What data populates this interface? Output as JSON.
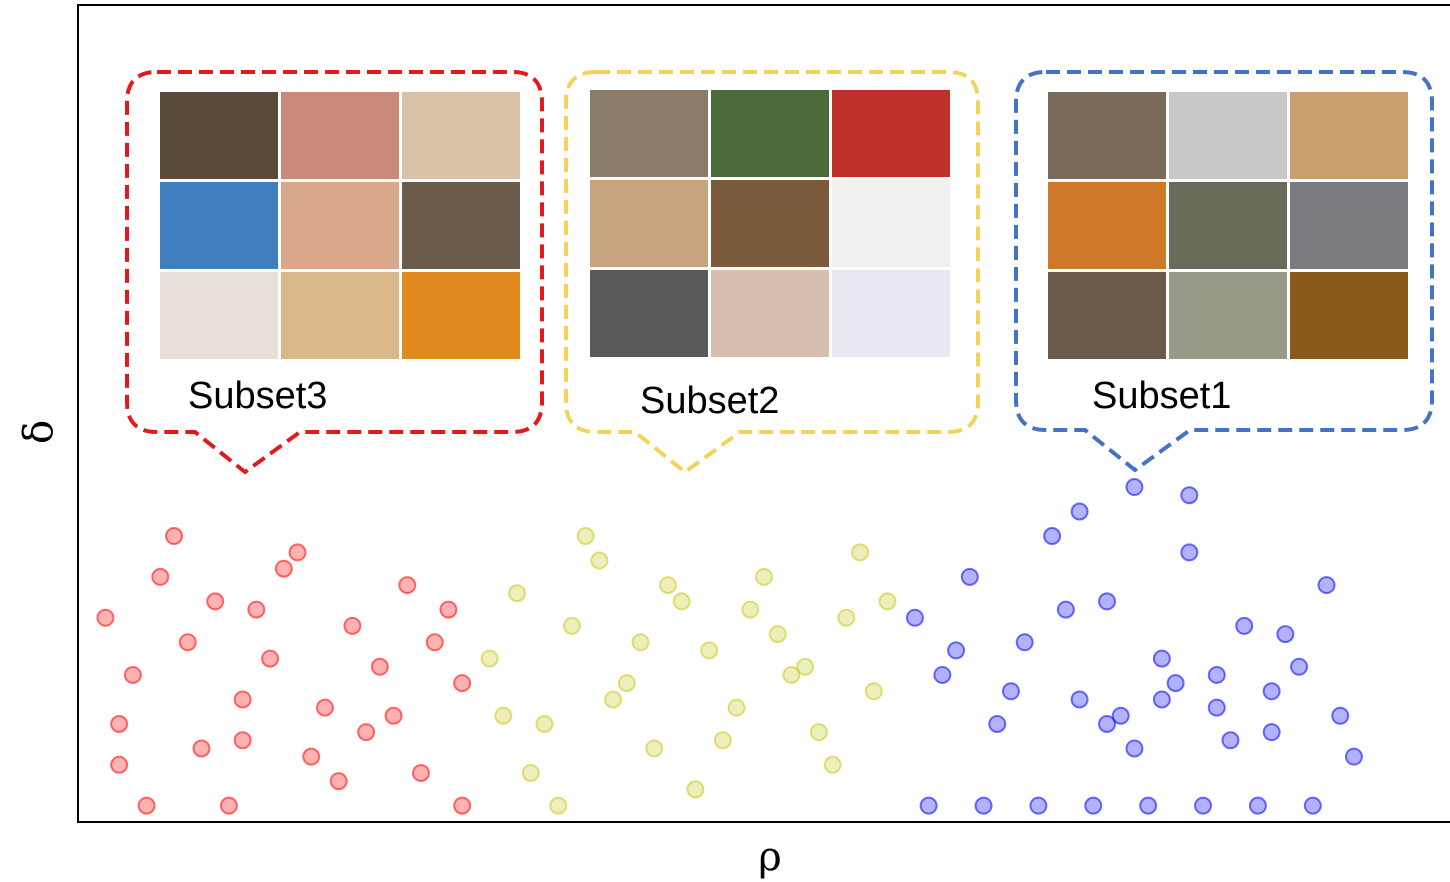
{
  "chart_data": {
    "type": "scatter",
    "x_label": "ρ",
    "y_label": "δ",
    "xlim": [
      0,
      1
    ],
    "ylim": [
      0,
      1
    ],
    "series": [
      {
        "name": "Subset3",
        "color": "#ff0000",
        "x": [
          0.02,
          0.04,
          0.06,
          0.03,
          0.08,
          0.1,
          0.12,
          0.09,
          0.14,
          0.16,
          0.13,
          0.18,
          0.2,
          0.17,
          0.22,
          0.24,
          0.21,
          0.26,
          0.28,
          0.25,
          0.05,
          0.11,
          0.15,
          0.19,
          0.23,
          0.27,
          0.07,
          0.03,
          0.12,
          0.28
        ],
        "y": [
          0.25,
          0.18,
          0.3,
          0.12,
          0.22,
          0.27,
          0.15,
          0.09,
          0.2,
          0.33,
          0.26,
          0.14,
          0.24,
          0.08,
          0.19,
          0.29,
          0.11,
          0.22,
          0.17,
          0.06,
          0.02,
          0.02,
          0.31,
          0.05,
          0.13,
          0.26,
          0.35,
          0.07,
          0.1,
          0.02
        ]
      },
      {
        "name": "Subset2",
        "color": "#c8c81e",
        "x": [
          0.3,
          0.32,
          0.34,
          0.36,
          0.38,
          0.4,
          0.42,
          0.44,
          0.46,
          0.48,
          0.5,
          0.52,
          0.54,
          0.56,
          0.58,
          0.33,
          0.37,
          0.41,
          0.45,
          0.49,
          0.53,
          0.57,
          0.31,
          0.35,
          0.43,
          0.47,
          0.51,
          0.55,
          0.59,
          0.39
        ],
        "y": [
          0.2,
          0.28,
          0.12,
          0.24,
          0.32,
          0.17,
          0.09,
          0.27,
          0.21,
          0.14,
          0.3,
          0.18,
          0.11,
          0.25,
          0.16,
          0.06,
          0.35,
          0.22,
          0.04,
          0.26,
          0.19,
          0.33,
          0.13,
          0.02,
          0.29,
          0.1,
          0.23,
          0.07,
          0.27,
          0.15
        ]
      },
      {
        "name": "Subset1",
        "color": "#0000ff",
        "x": [
          0.61,
          0.63,
          0.65,
          0.67,
          0.69,
          0.71,
          0.73,
          0.75,
          0.77,
          0.79,
          0.81,
          0.83,
          0.85,
          0.87,
          0.89,
          0.91,
          0.93,
          0.62,
          0.66,
          0.7,
          0.74,
          0.78,
          0.82,
          0.86,
          0.9,
          0.64,
          0.68,
          0.72,
          0.76,
          0.8,
          0.84,
          0.88,
          0.92,
          0.73,
          0.77,
          0.81,
          0.75,
          0.79,
          0.83,
          0.87
        ],
        "y": [
          0.25,
          0.18,
          0.3,
          0.12,
          0.22,
          0.35,
          0.15,
          0.27,
          0.09,
          0.2,
          0.33,
          0.14,
          0.24,
          0.11,
          0.19,
          0.29,
          0.08,
          0.02,
          0.02,
          0.02,
          0.02,
          0.02,
          0.02,
          0.02,
          0.02,
          0.21,
          0.16,
          0.26,
          0.13,
          0.17,
          0.1,
          0.23,
          0.13,
          0.38,
          0.41,
          0.4,
          0.12,
          0.15,
          0.18,
          0.16
        ]
      }
    ]
  }
}
